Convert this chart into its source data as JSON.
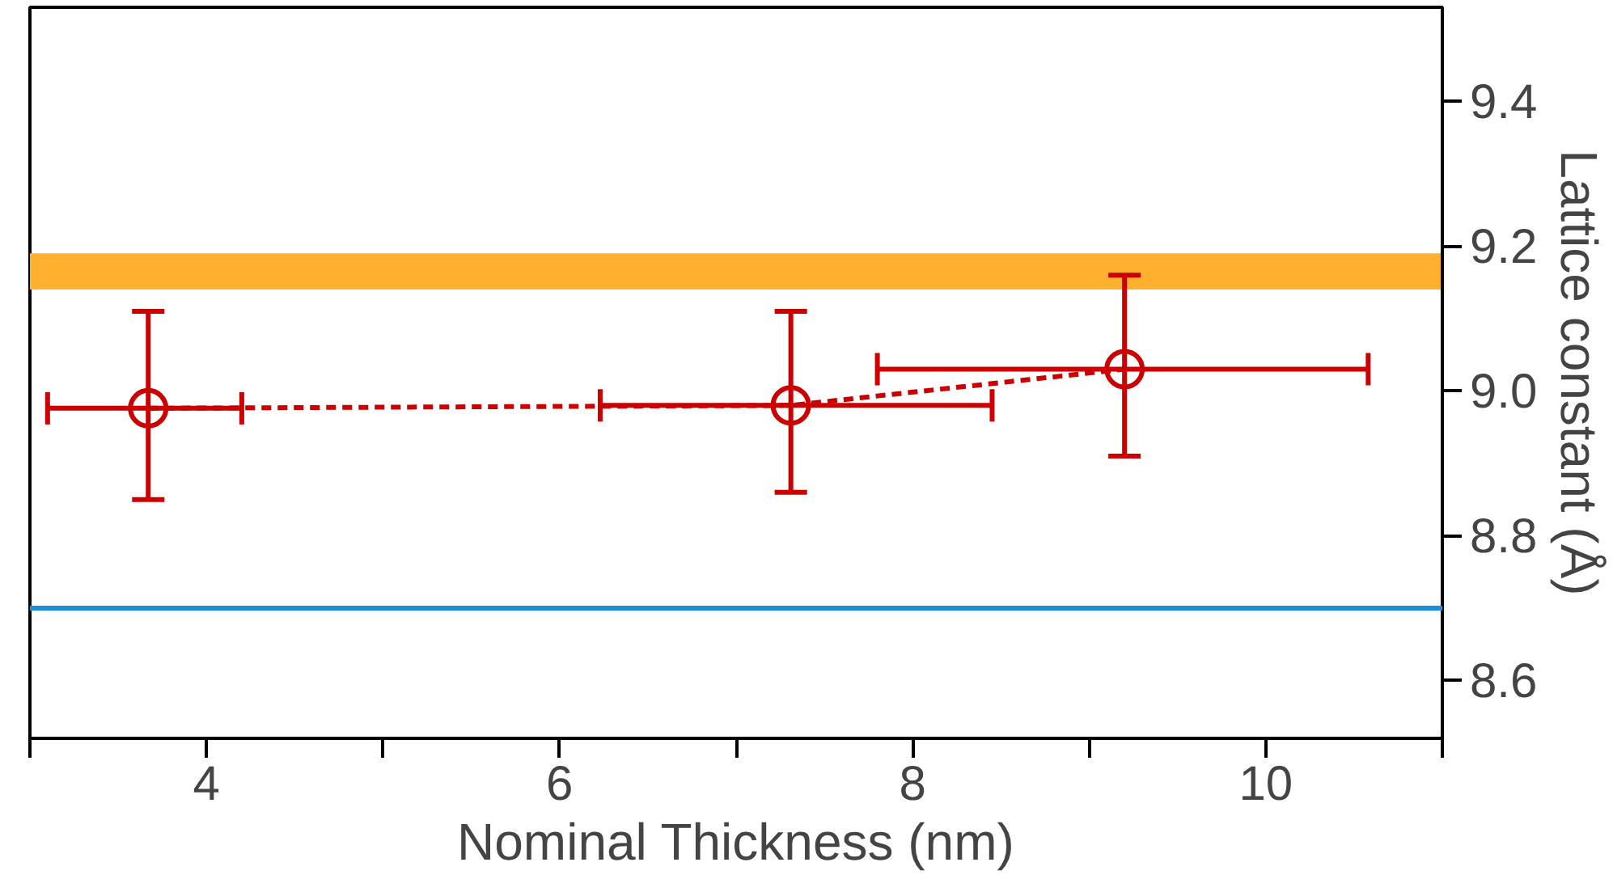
{
  "chart_data": {
    "type": "line",
    "xlabel": "Nominal Thickness (nm)",
    "ylabel": "Lattice constant (Å)",
    "x": [
      3.67,
      7.31,
      9.2
    ],
    "series": [
      {
        "color": "#cc0000",
        "values": [
          8.976,
          8.98,
          9.03
        ],
        "errors": [
          [
            8.85,
            9.11
          ],
          [
            8.86,
            9.11
          ],
          [
            8.91,
            9.16
          ]
        ],
        "xerrors": [
          [
            3.1,
            4.2
          ],
          [
            6.23,
            8.45
          ],
          [
            7.8,
            10.58
          ]
        ]
      }
    ],
    "marker": "circle",
    "line_style": "dashed",
    "grid": false,
    "xlim": [
      3,
      11
    ],
    "ylim": [
      8.52,
      9.53
    ],
    "xticks": [
      {
        "value": 3,
        "label": null
      },
      4,
      {
        "value": 5,
        "label": null
      },
      6,
      {
        "value": 7,
        "label": null
      },
      8,
      {
        "value": 9,
        "label": null
      },
      10,
      {
        "value": 11,
        "label": null
      }
    ],
    "yticks": [
      8.6,
      8.8,
      {
        "value": 9.0,
        "label": "9.0"
      },
      9.2,
      9.4
    ],
    "bands": [
      {
        "axis": "y",
        "from": 9.14,
        "to": 9.19,
        "color": "#ffb02e"
      }
    ],
    "ref_lines": [
      {
        "axis": "y",
        "value": 8.7,
        "color": "#1a8fd6"
      }
    ]
  }
}
